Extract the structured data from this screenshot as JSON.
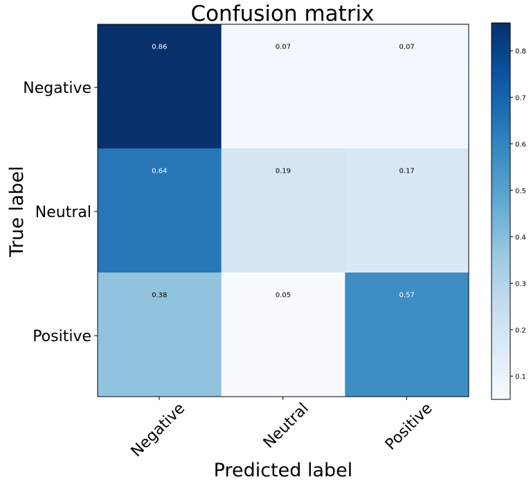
{
  "chart_data": {
    "type": "heatmap",
    "title": "Confusion matrix",
    "xlabel": "Predicted label",
    "ylabel": "True label",
    "x_categories": [
      "Negative",
      "Neutral",
      "Positive"
    ],
    "y_categories": [
      "Negative",
      "Neutral",
      "Positive"
    ],
    "values": [
      [
        0.86,
        0.07,
        0.07
      ],
      [
        0.64,
        0.19,
        0.17
      ],
      [
        0.38,
        0.05,
        0.57
      ]
    ],
    "cell_labels": [
      [
        "0.86",
        "0.07",
        "0.07"
      ],
      [
        "0.64",
        "0.19",
        "0.17"
      ],
      [
        "0.38",
        "0.05",
        "0.57"
      ]
    ],
    "colormap": "Blues",
    "colorbar": {
      "range": [
        0.05,
        0.86
      ],
      "ticks": [
        "0.1",
        "0.2",
        "0.3",
        "0.4",
        "0.5",
        "0.6",
        "0.7",
        "0.8"
      ]
    },
    "xtick_rotation_deg": 45,
    "grid": false
  }
}
